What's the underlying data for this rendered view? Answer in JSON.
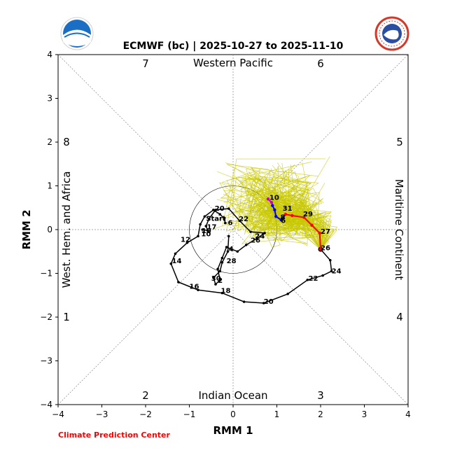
{
  "title": "ECMWF (bc) | 2025-10-27 to 2025-11-10",
  "xlabel": "RMM 1",
  "ylabel": "RMM 2",
  "credit": "Climate Prediction Center",
  "logos": {
    "left": "NOAA",
    "right": "NATIONAL WEATHER SERVICE"
  },
  "colors": {
    "observed": "#000000",
    "ensemble": "#c8c800",
    "week1": "#ff0000",
    "week2": "#0000ff",
    "week3": "#c800c8"
  },
  "phases": [
    {
      "label": "1"
    },
    {
      "label": "2"
    },
    {
      "label": "3"
    },
    {
      "label": "4"
    },
    {
      "label": "5"
    },
    {
      "label": "6"
    },
    {
      "label": "7"
    },
    {
      "label": "8"
    }
  ],
  "regions": {
    "top": "Western Pacific",
    "bottom": "Indian Ocean",
    "left": "West. Hem. and Africa",
    "right": "Maritime Continent"
  },
  "chart_data": {
    "type": "scatter",
    "title": "ECMWF (bc) | 2025-10-27 to 2025-11-10",
    "xlabel": "RMM 1",
    "ylabel": "RMM 2",
    "xlim": [
      -4,
      4
    ],
    "ylim": [
      -4,
      4
    ],
    "xticks": [
      "−4",
      "−3",
      "−2",
      "−1",
      "0",
      "1",
      "2",
      "3",
      "4"
    ],
    "yticks": [
      "−4",
      "−3",
      "−2",
      "−1",
      "0",
      "1",
      "2",
      "3",
      "4"
    ],
    "unit_circle_radius": 1,
    "observed": [
      [
        -0.18,
        0.15
      ],
      [
        -0.2,
        0.25
      ],
      [
        -0.3,
        0.35
      ],
      [
        -0.45,
        0.45
      ],
      [
        -0.65,
        0.3
      ],
      [
        -0.75,
        0.12
      ],
      [
        -0.8,
        -0.15
      ],
      [
        -1.05,
        -0.3
      ],
      [
        -1.32,
        -0.55
      ],
      [
        -1.42,
        -0.78
      ],
      [
        -1.25,
        -1.2
      ],
      [
        -0.95,
        -1.32
      ],
      [
        -0.8,
        -1.38
      ],
      [
        -0.25,
        -1.45
      ],
      [
        0.25,
        -1.65
      ],
      [
        0.7,
        -1.68
      ],
      [
        1.25,
        -1.47
      ],
      [
        1.7,
        -1.15
      ],
      [
        2.05,
        -1.05
      ],
      [
        2.25,
        -0.95
      ],
      [
        2.22,
        -0.7
      ],
      [
        2.0,
        -0.45
      ]
    ],
    "observed_labels": [
      {
        "text": "Start",
        "x": -0.62,
        "y": 0.25
      },
      {
        "text": "4",
        "x": -0.1,
        "y": -0.45
      },
      {
        "text": "6",
        "x": -0.12,
        "y": 0.15
      },
      {
        "text": "10",
        "x": -0.73,
        "y": -0.1
      },
      {
        "text": "12",
        "x": -1.2,
        "y": -0.23
      },
      {
        "text": "14",
        "x": -1.4,
        "y": -0.72
      },
      {
        "text": "16",
        "x": -1.0,
        "y": -1.3
      },
      {
        "text": "18",
        "x": -0.28,
        "y": -1.4
      },
      {
        "text": "20",
        "x": 0.7,
        "y": -1.65
      },
      {
        "text": "22",
        "x": 1.72,
        "y": -1.12
      },
      {
        "text": "24",
        "x": 2.25,
        "y": -0.95
      },
      {
        "text": "26",
        "x": 2.0,
        "y": -0.42
      },
      {
        "text": "28",
        "x": -0.15,
        "y": -0.72
      },
      {
        "text": "30",
        "x": -0.5,
        "y": -1.12
      },
      {
        "text": "2",
        "x": -0.35,
        "y": -1.17
      },
      {
        "text": "17",
        "x": -0.6,
        "y": 0.06
      },
      {
        "text": "19",
        "x": -0.72,
        "y": -0.03
      },
      {
        "text": "20",
        "x": -0.42,
        "y": 0.48
      },
      {
        "text": "22",
        "x": 0.13,
        "y": 0.24
      },
      {
        "text": "24",
        "x": 0.5,
        "y": -0.15
      },
      {
        "text": "26",
        "x": 0.4,
        "y": -0.25
      }
    ],
    "observed_inner": [
      [
        -0.1,
        -0.15
      ],
      [
        -0.12,
        -0.5
      ],
      [
        -0.25,
        -0.75
      ],
      [
        -0.3,
        -0.95
      ],
      [
        -0.45,
        -1.1
      ],
      [
        -0.4,
        -1.25
      ],
      [
        -0.3,
        -1.15
      ],
      [
        -0.35,
        -0.9
      ],
      [
        -0.25,
        -0.65
      ],
      [
        -0.15,
        -0.4
      ],
      [
        0.1,
        -0.5
      ],
      [
        0.3,
        -0.35
      ],
      [
        0.55,
        -0.2
      ],
      [
        0.72,
        -0.08
      ],
      [
        0.4,
        -0.05
      ],
      [
        0.15,
        0.2
      ],
      [
        -0.1,
        0.48
      ],
      [
        -0.4,
        0.45
      ],
      [
        -0.55,
        0.25
      ],
      [
        -0.62,
        0.08
      ],
      [
        -0.58,
        -0.02
      ],
      [
        -0.7,
        0.0
      ]
    ],
    "forecast_mean": [
      {
        "x": 2.0,
        "y": -0.45,
        "color": "red"
      },
      {
        "x": 1.98,
        "y": -0.08,
        "color": "red"
      },
      {
        "x": 1.8,
        "y": 0.1,
        "color": "red"
      },
      {
        "x": 1.62,
        "y": 0.28,
        "color": "red"
      },
      {
        "x": 1.35,
        "y": 0.32,
        "color": "red"
      },
      {
        "x": 1.2,
        "y": 0.35,
        "color": "red"
      },
      {
        "x": 1.1,
        "y": 0.22,
        "color": "blue"
      },
      {
        "x": 0.98,
        "y": 0.3,
        "color": "blue"
      },
      {
        "x": 0.95,
        "y": 0.45,
        "color": "blue"
      },
      {
        "x": 0.9,
        "y": 0.55,
        "color": "blue"
      },
      {
        "x": 0.88,
        "y": 0.62,
        "color": "magenta"
      },
      {
        "x": 0.8,
        "y": 0.7,
        "color": "magenta"
      }
    ],
    "forecast_labels": [
      {
        "text": "27",
        "x": 2.0,
        "y": -0.05
      },
      {
        "text": "29",
        "x": 1.6,
        "y": 0.35
      },
      {
        "text": "31",
        "x": 1.13,
        "y": 0.48
      },
      {
        "text": "8",
        "x": 1.08,
        "y": 0.28
      },
      {
        "text": "6",
        "x": 1.09,
        "y": 0.2
      },
      {
        "text": "10",
        "x": 0.83,
        "y": 0.73
      }
    ]
  }
}
